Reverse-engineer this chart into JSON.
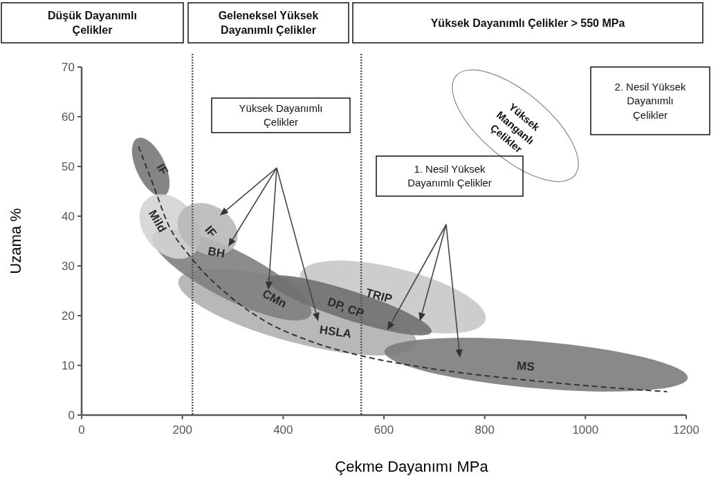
{
  "chart_data": {
    "type": "line",
    "xlabel": "Çekme Dayanımı MPa",
    "ylabel": "Uzama %",
    "x": [
      113,
      145,
      169,
      217,
      288,
      359,
      453,
      552,
      672,
      917,
      1162
    ],
    "series": [
      {
        "color": "#333333",
        "line_style": "dashed",
        "values": [
          54,
          45.5,
          39,
          31.7,
          24.4,
          19.2,
          14.9,
          12,
          9.7,
          6.7,
          4.7
        ]
      }
    ],
    "xlim": [
      0,
      1200
    ],
    "xticks": [
      0,
      200,
      400,
      600,
      800,
      1000,
      1200
    ],
    "ylim": [
      0,
      70
    ],
    "yticks": [
      0,
      10,
      20,
      30,
      40,
      50,
      60,
      70
    ],
    "grid": false,
    "marker": "none",
    "ref_lines": [
      {
        "axis": "x",
        "value": 220,
        "line_style": "dotted",
        "color": "#555555"
      },
      {
        "axis": "x",
        "value": 555,
        "line_style": "dotted",
        "color": "#555555"
      }
    ],
    "annotations": [
      "Düşük Dayanımlı Çelikler",
      "Geleneksel Yüksek Dayanımlı Çelikler",
      "Yüksek Dayanımlı Çelikler > 550 MPa",
      "Yüksek Dayanımlı Çelikler",
      "1. Nesil Yüksek Dayanımlı Çelikler",
      "2. Nesil Yüksek Dayanımlı Çelikler",
      "Yüksek Manganlı Çelikler",
      "IF",
      "Mild",
      "IF",
      "BH",
      "CMn",
      "DP, CP",
      "HSLA",
      "TRIP",
      "MS"
    ]
  }
}
